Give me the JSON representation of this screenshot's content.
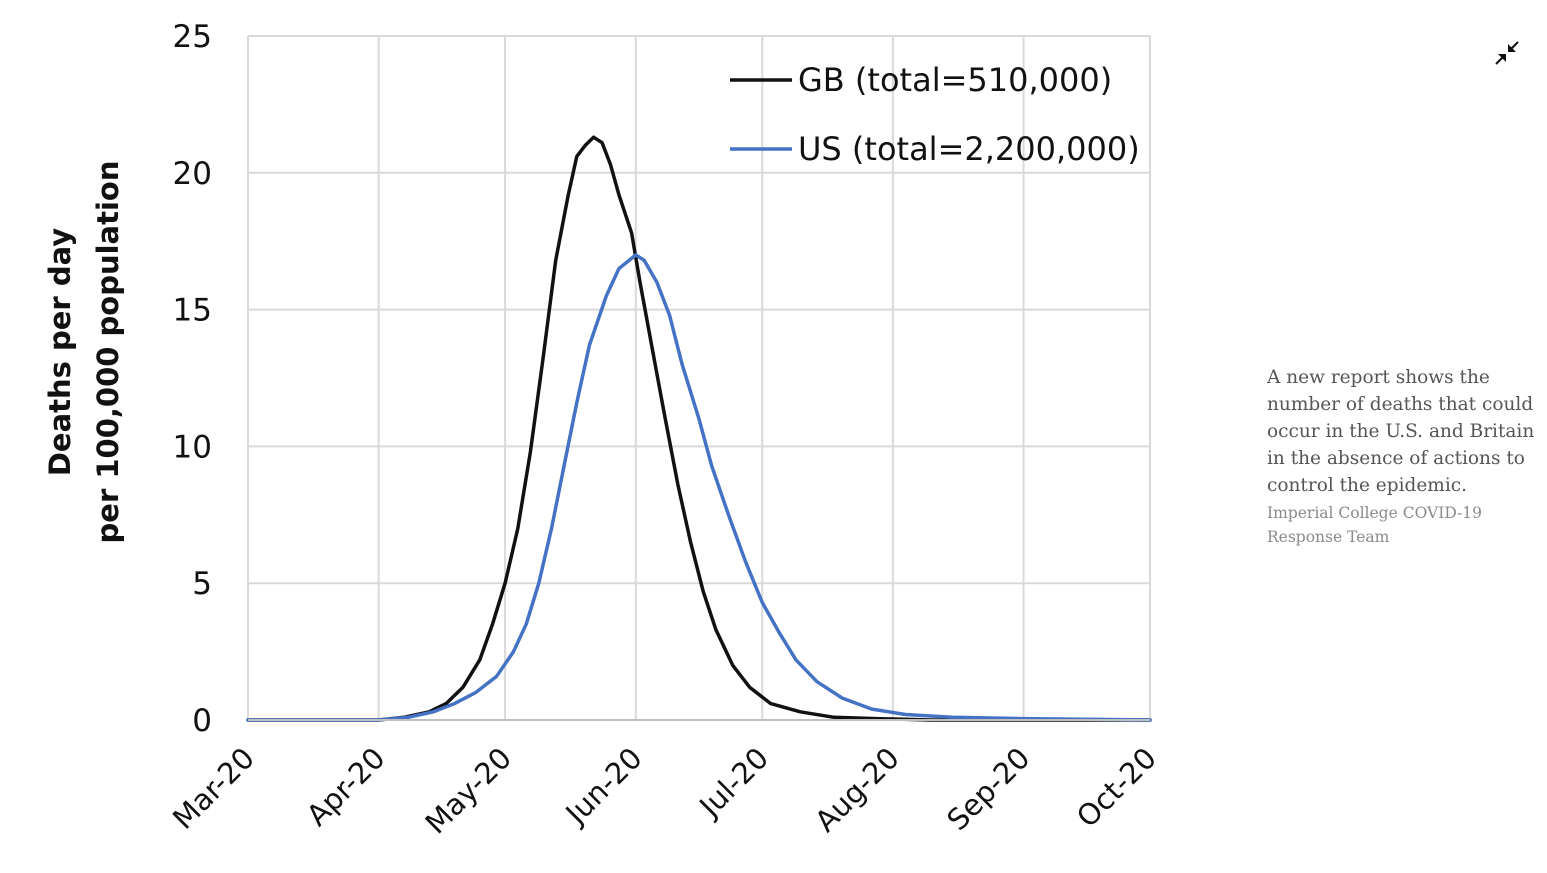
{
  "chart_data": {
    "type": "line",
    "title": "",
    "ylabel": [
      "Deaths per day",
      "per 100,000 population"
    ],
    "xlabel": "",
    "ylim": [
      0,
      25
    ],
    "yticks": [
      "0",
      "5",
      "10",
      "15",
      "20",
      "25"
    ],
    "yticks_values": [
      0,
      5,
      10,
      15,
      20,
      25
    ],
    "xlim": [
      "2020-03-01",
      "2020-10-01"
    ],
    "xticks": [
      "Mar-20",
      "Apr-20",
      "May-20",
      "Jun-20",
      "Jul-20",
      "Aug-20",
      "Sep-20",
      "Oct-20"
    ],
    "xticks_dates": [
      "2020-03-01",
      "2020-04-01",
      "2020-05-01",
      "2020-06-01",
      "2020-07-01",
      "2020-08-01",
      "2020-09-01",
      "2020-10-01"
    ],
    "grid": true,
    "legend_position": "top-right",
    "series": [
      {
        "name": "GB (total=510,000)",
        "color": "#111111",
        "points": [
          [
            "2020-03-01",
            0
          ],
          [
            "2020-04-01",
            0
          ],
          [
            "2020-04-07",
            0.1
          ],
          [
            "2020-04-13",
            0.3
          ],
          [
            "2020-04-17",
            0.6
          ],
          [
            "2020-04-21",
            1.2
          ],
          [
            "2020-04-25",
            2.2
          ],
          [
            "2020-04-28",
            3.5
          ],
          [
            "2020-05-01",
            5.0
          ],
          [
            "2020-05-04",
            7.0
          ],
          [
            "2020-05-07",
            9.8
          ],
          [
            "2020-05-10",
            13.2
          ],
          [
            "2020-05-13",
            16.8
          ],
          [
            "2020-05-16",
            19.2
          ],
          [
            "2020-05-18",
            20.6
          ],
          [
            "2020-05-20",
            21.0
          ],
          [
            "2020-05-22",
            21.3
          ],
          [
            "2020-05-24",
            21.1
          ],
          [
            "2020-05-26",
            20.3
          ],
          [
            "2020-05-28",
            19.2
          ],
          [
            "2020-05-31",
            17.8
          ],
          [
            "2020-06-02",
            16.0
          ],
          [
            "2020-06-05",
            13.5
          ],
          [
            "2020-06-08",
            11.0
          ],
          [
            "2020-06-11",
            8.6
          ],
          [
            "2020-06-14",
            6.5
          ],
          [
            "2020-06-17",
            4.7
          ],
          [
            "2020-06-20",
            3.3
          ],
          [
            "2020-06-24",
            2.0
          ],
          [
            "2020-06-28",
            1.2
          ],
          [
            "2020-07-03",
            0.6
          ],
          [
            "2020-07-10",
            0.3
          ],
          [
            "2020-07-18",
            0.1
          ],
          [
            "2020-07-28",
            0.05
          ],
          [
            "2020-08-10",
            0
          ],
          [
            "2020-10-01",
            0
          ]
        ]
      },
      {
        "name": "US (total=2,200,000)",
        "color": "#4472c4",
        "points": [
          [
            "2020-03-01",
            0
          ],
          [
            "2020-04-01",
            0
          ],
          [
            "2020-04-08",
            0.1
          ],
          [
            "2020-04-14",
            0.3
          ],
          [
            "2020-04-19",
            0.6
          ],
          [
            "2020-04-24",
            1.0
          ],
          [
            "2020-04-29",
            1.6
          ],
          [
            "2020-05-03",
            2.5
          ],
          [
            "2020-05-06",
            3.5
          ],
          [
            "2020-05-09",
            5.0
          ],
          [
            "2020-05-12",
            7.0
          ],
          [
            "2020-05-15",
            9.3
          ],
          [
            "2020-05-18",
            11.6
          ],
          [
            "2020-05-21",
            13.7
          ],
          [
            "2020-05-25",
            15.5
          ],
          [
            "2020-05-28",
            16.5
          ],
          [
            "2020-06-01",
            17.0
          ],
          [
            "2020-06-03",
            16.8
          ],
          [
            "2020-06-06",
            16.0
          ],
          [
            "2020-06-09",
            14.8
          ],
          [
            "2020-06-12",
            13.0
          ],
          [
            "2020-06-16",
            11.0
          ],
          [
            "2020-06-19",
            9.3
          ],
          [
            "2020-06-23",
            7.5
          ],
          [
            "2020-06-27",
            5.8
          ],
          [
            "2020-07-01",
            4.3
          ],
          [
            "2020-07-05",
            3.2
          ],
          [
            "2020-07-09",
            2.2
          ],
          [
            "2020-07-14",
            1.4
          ],
          [
            "2020-07-20",
            0.8
          ],
          [
            "2020-07-27",
            0.4
          ],
          [
            "2020-08-04",
            0.2
          ],
          [
            "2020-08-15",
            0.1
          ],
          [
            "2020-09-01",
            0.05
          ],
          [
            "2020-10-01",
            0
          ]
        ]
      }
    ]
  },
  "caption": {
    "text": "A new report shows the number of deaths that could occur in the U.S. and Britain in the absence of actions to control the epidemic.",
    "credit": "Imperial College COVID-19 Response Team"
  },
  "controls": {
    "collapse_icon": "collapse-arrows-icon"
  }
}
